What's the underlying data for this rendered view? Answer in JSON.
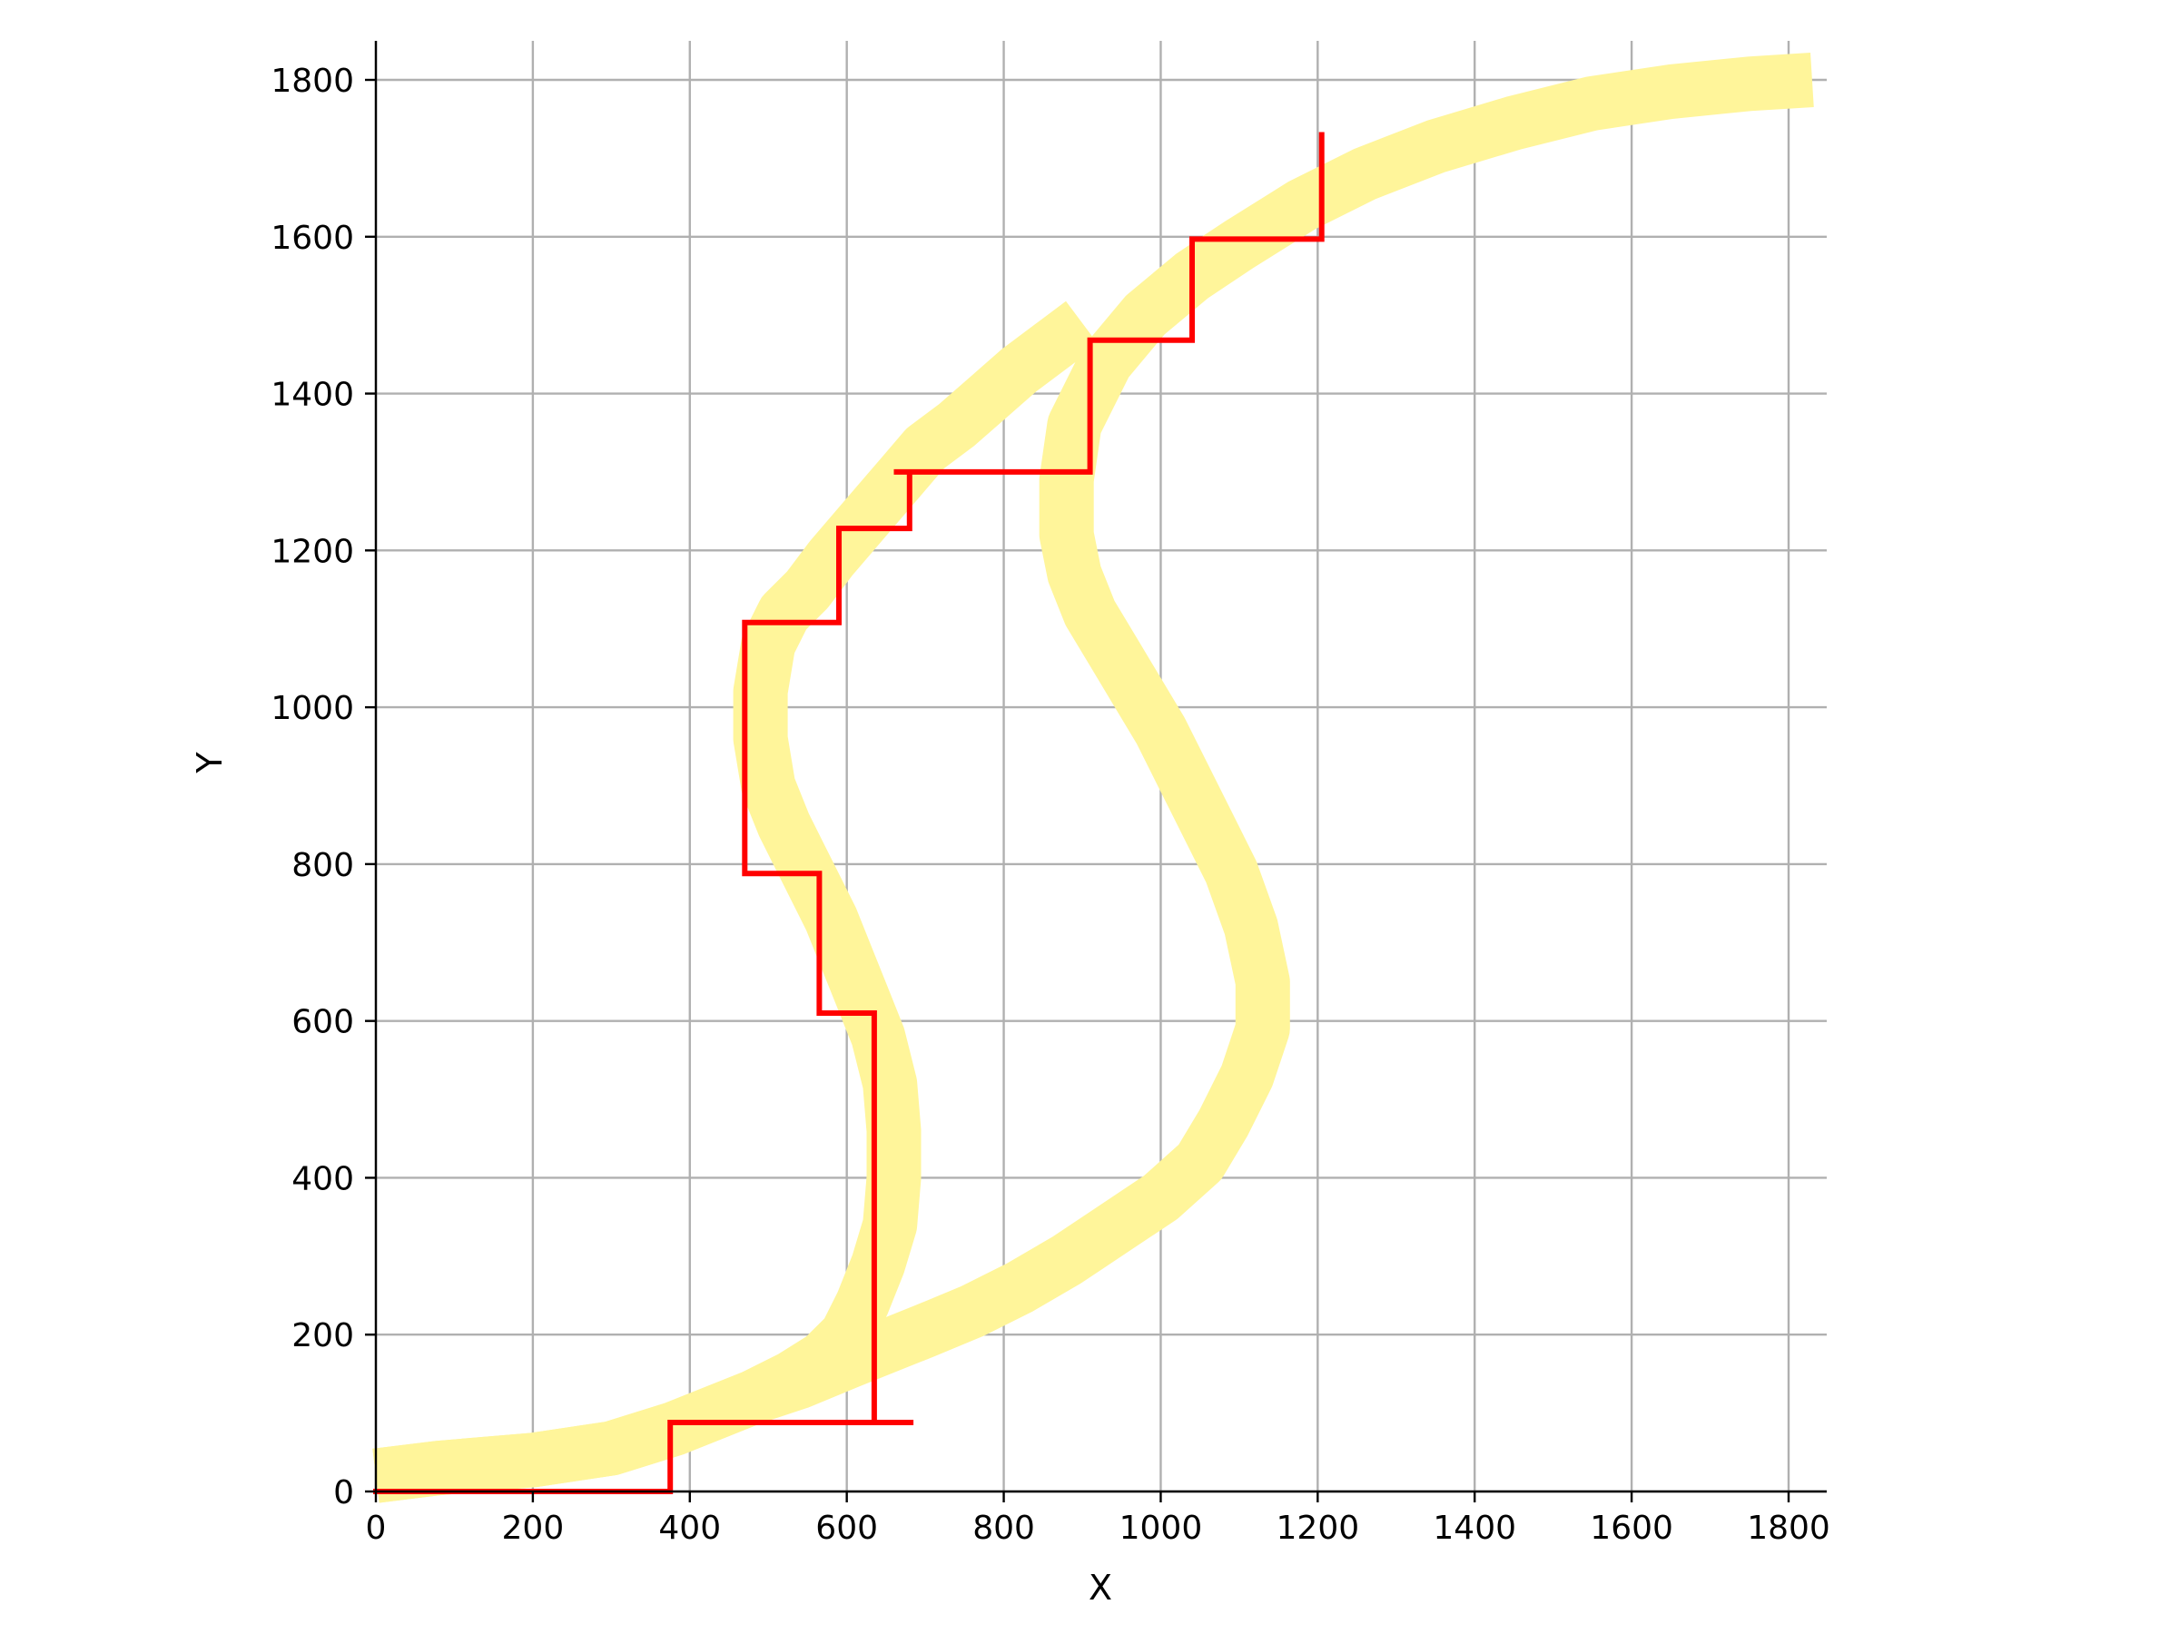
{
  "chart_data": {
    "type": "line",
    "title": "",
    "xlabel": "X",
    "ylabel": "Y",
    "xlim": [
      0,
      1850
    ],
    "ylim": [
      0,
      1850
    ],
    "x_ticks": [
      0,
      200,
      400,
      600,
      800,
      1000,
      1200,
      1400,
      1600,
      1800
    ],
    "y_ticks": [
      0,
      200,
      400,
      600,
      800,
      1000,
      1200,
      1400,
      1600,
      1800
    ],
    "grid": true,
    "colors": {
      "band": "#fff59a",
      "step": "#ff0000",
      "grid": "#b0b0b0",
      "axis": "#000000"
    },
    "series": [
      {
        "style": "thick-band",
        "x": [
          0,
          80,
          200,
          300,
          380,
          430,
          480,
          540,
          600,
          650,
          700,
          760,
          820,
          880,
          940,
          1000,
          1050,
          1080,
          1110,
          1130,
          1130,
          1115,
          1090,
          1060,
          1030,
          1000,
          970,
          940,
          910,
          890,
          880,
          880,
          890,
          930,
          980,
          1040,
          1100,
          1180,
          1260,
          1350,
          1450,
          1550,
          1650,
          1750,
          1830
        ],
        "y": [
          20,
          30,
          40,
          55,
          80,
          100,
          120,
          140,
          165,
          185,
          205,
          230,
          260,
          295,
          335,
          375,
          420,
          470,
          530,
          590,
          650,
          720,
          790,
          850,
          910,
          970,
          1020,
          1070,
          1120,
          1170,
          1220,
          1290,
          1360,
          1440,
          1500,
          1550,
          1590,
          1640,
          1680,
          1715,
          1745,
          1770,
          1785,
          1795,
          1800
        ]
      },
      {
        "style": "thick-band",
        "x": [
          0,
          80,
          200,
          300,
          380,
          430,
          480,
          530,
          570,
          600,
          620,
          640,
          655,
          660,
          660,
          655,
          640,
          620,
          600,
          580,
          560,
          540,
          520,
          500,
          490,
          490,
          500,
          520,
          550,
          580,
          610,
          640,
          670,
          700,
          740,
          780,
          820,
          860,
          900
        ],
        "y": [
          20,
          30,
          40,
          55,
          80,
          100,
          120,
          145,
          170,
          200,
          240,
          290,
          340,
          400,
          460,
          520,
          580,
          630,
          680,
          730,
          770,
          810,
          850,
          900,
          960,
          1020,
          1080,
          1120,
          1150,
          1190,
          1225,
          1260,
          1295,
          1330,
          1360,
          1395,
          1430,
          1460,
          1490
        ]
      },
      {
        "style": "step-line",
        "x": [
          0,
          375,
          375,
          685,
          635,
          635,
          565,
          565,
          470,
          470,
          590,
          590,
          680,
          680,
          660,
          910,
          910,
          1040,
          1040,
          1205,
          1205
        ],
        "y": [
          0,
          0,
          88,
          88,
          88,
          610,
          610,
          788,
          788,
          1108,
          1108,
          1228,
          1228,
          1300,
          1300,
          1300,
          1468,
          1468,
          1597,
          1597,
          1730
        ]
      }
    ]
  }
}
